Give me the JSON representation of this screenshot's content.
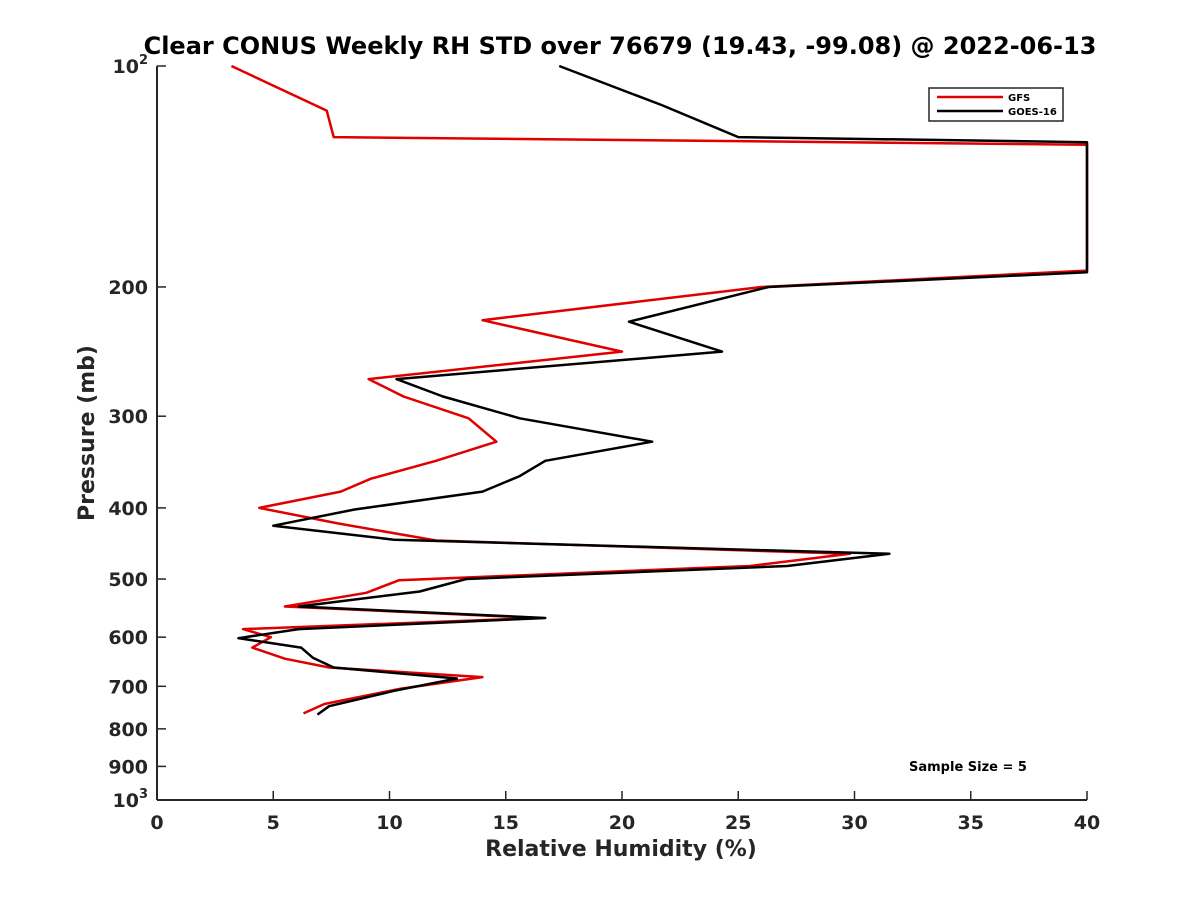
{
  "chart_data": {
    "type": "line",
    "title": "Clear CONUS Weekly RH STD over 76679 (19.43, -99.08) @ 2022-06-13",
    "xlabel": "Relative Humidity (%)",
    "ylabel": "Pressure (mb)",
    "xlim": [
      0,
      40
    ],
    "ylim": [
      100,
      1000
    ],
    "y_scale": "log",
    "y_reversed": true,
    "grid": false,
    "legend_position": "top-right",
    "annotation": "Sample Size = 5",
    "x_ticks": [
      {
        "value": 0,
        "label": "0"
      },
      {
        "value": 5,
        "label": "5"
      },
      {
        "value": 10,
        "label": "10"
      },
      {
        "value": 15,
        "label": "15"
      },
      {
        "value": 20,
        "label": "20"
      },
      {
        "value": 25,
        "label": "25"
      },
      {
        "value": 30,
        "label": "30"
      },
      {
        "value": 35,
        "label": "35"
      },
      {
        "value": 40,
        "label": "40"
      }
    ],
    "y_ticks": [
      {
        "value": 100,
        "base": "10",
        "sup": "2"
      },
      {
        "value": 200,
        "label": "200"
      },
      {
        "value": 300,
        "label": "300"
      },
      {
        "value": 400,
        "label": "400"
      },
      {
        "value": 500,
        "label": "500"
      },
      {
        "value": 600,
        "label": "600"
      },
      {
        "value": 700,
        "label": "700"
      },
      {
        "value": 800,
        "label": "800"
      },
      {
        "value": 900,
        "label": "900"
      },
      {
        "value": 1000,
        "base": "10",
        "sup": "3"
      }
    ],
    "series": [
      {
        "name": "GFS",
        "color": "#e00000",
        "points": [
          [
            3.2,
            100
          ],
          [
            7.3,
            115
          ],
          [
            7.6,
            125
          ],
          [
            40,
            128
          ],
          [
            40,
            190
          ],
          [
            26,
            200
          ],
          [
            14,
            222
          ],
          [
            20,
            245
          ],
          [
            9.1,
            267
          ],
          [
            10.6,
            282
          ],
          [
            13.4,
            302
          ],
          [
            14.6,
            325
          ],
          [
            12,
            345
          ],
          [
            9.2,
            365
          ],
          [
            7.9,
            380
          ],
          [
            4.4,
            400
          ],
          [
            7.8,
            420
          ],
          [
            12,
            443
          ],
          [
            29.8,
            462
          ],
          [
            25.5,
            480
          ],
          [
            10.4,
            502
          ],
          [
            9,
            522
          ],
          [
            5.5,
            545
          ],
          [
            16.5,
            565
          ],
          [
            3.7,
            585
          ],
          [
            4.9,
            600
          ],
          [
            4.1,
            620
          ],
          [
            5.5,
            642
          ],
          [
            7.4,
            660
          ],
          [
            14,
            680
          ],
          [
            10.5,
            705
          ],
          [
            7.2,
            740
          ],
          [
            6.3,
            762
          ]
        ]
      },
      {
        "name": "GOES-16",
        "color": "#000000",
        "points": [
          [
            17.3,
            100
          ],
          [
            21.7,
            113
          ],
          [
            25,
            125
          ],
          [
            40,
            127
          ],
          [
            40,
            191
          ],
          [
            26.3,
            200
          ],
          [
            20.3,
            223
          ],
          [
            24.3,
            245
          ],
          [
            10.3,
            267
          ],
          [
            12.3,
            282
          ],
          [
            15.6,
            302
          ],
          [
            21.3,
            325
          ],
          [
            16.7,
            345
          ],
          [
            15.6,
            362
          ],
          [
            14,
            380
          ],
          [
            8.5,
            402
          ],
          [
            5,
            423
          ],
          [
            10.2,
            442
          ],
          [
            31.5,
            462
          ],
          [
            27.1,
            480
          ],
          [
            13.3,
            500
          ],
          [
            11.3,
            520
          ],
          [
            6.1,
            545
          ],
          [
            16.7,
            565
          ],
          [
            6.1,
            585
          ],
          [
            3.5,
            602
          ],
          [
            6.2,
            620
          ],
          [
            6.7,
            640
          ],
          [
            7.6,
            660
          ],
          [
            12.9,
            683
          ],
          [
            10.2,
            710
          ],
          [
            7.4,
            745
          ],
          [
            6.9,
            765
          ]
        ]
      }
    ]
  }
}
